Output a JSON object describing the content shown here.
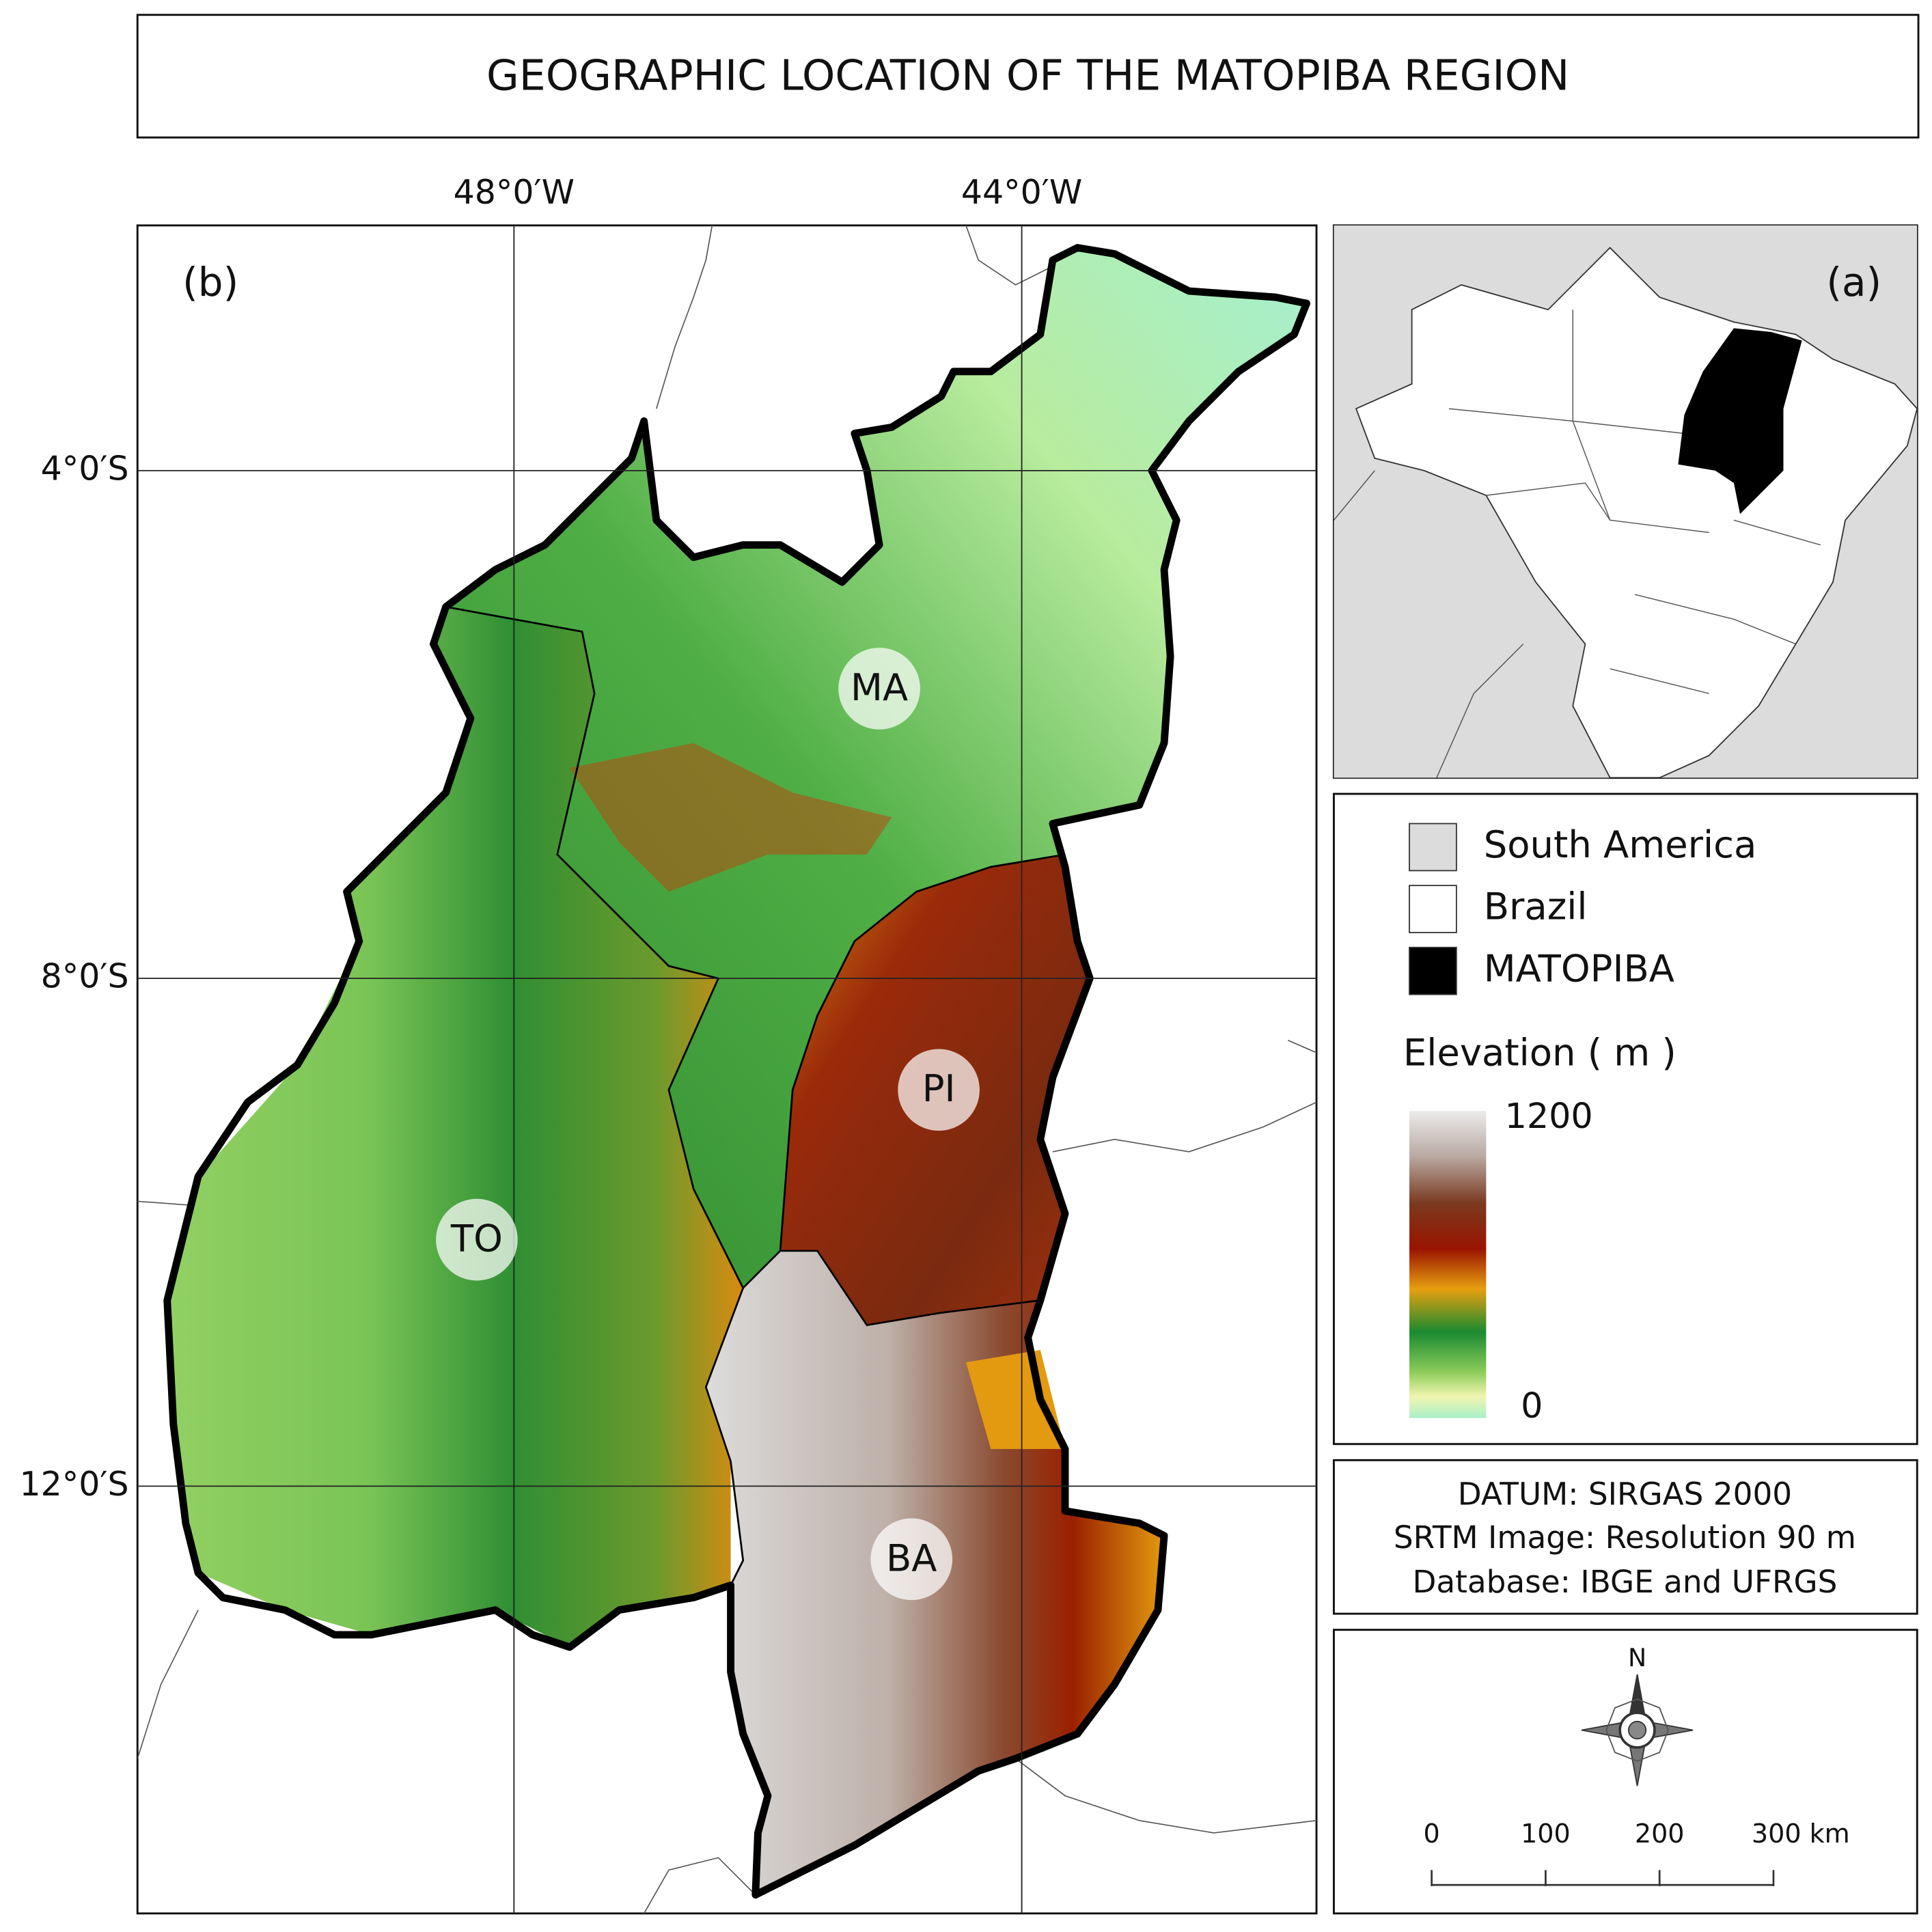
{
  "title": "GEOGRAPHIC LOCATION OF THE MATOPIBA REGION",
  "map": {
    "panel_label": "(b)",
    "graticule": {
      "longitudes": [
        {
          "value": -48,
          "label": "48°0′W"
        },
        {
          "value": -44,
          "label": "44°0′W"
        }
      ],
      "latitudes": [
        {
          "value": -4,
          "label": "4°0′S"
        },
        {
          "value": -8,
          "label": "8°0′S"
        },
        {
          "value": -12,
          "label": "12°0′S"
        }
      ]
    },
    "state_labels": [
      "MA",
      "PI",
      "TO",
      "BA"
    ]
  },
  "inset": {
    "panel_label": "(a)"
  },
  "legend": {
    "items": [
      "South America",
      "Brazil",
      "MATOPIBA"
    ],
    "elevation": {
      "title": "Elevation ( m )",
      "max": 1200,
      "min": 0
    }
  },
  "info": [
    "DATUM: SIRGAS 2000",
    "SRTM Image: Resolution 90 m",
    "Database: IBGE and UFRGS"
  ],
  "north_arrow": "N",
  "scale_bar": {
    "ticks": [
      0,
      100,
      200,
      {
        "value": 300,
        "label": "300 km"
      }
    ]
  }
}
